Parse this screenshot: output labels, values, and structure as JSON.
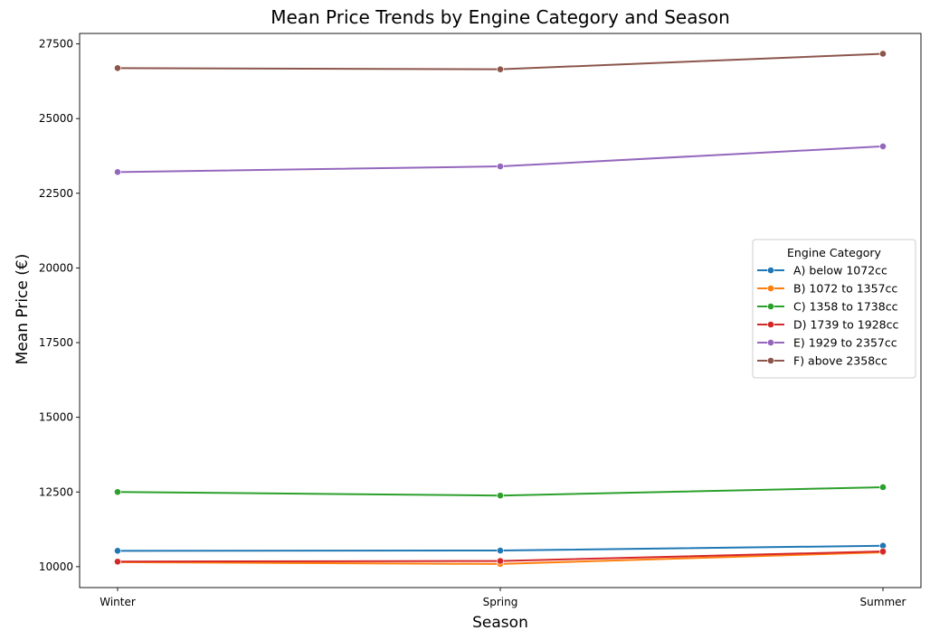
{
  "chart_data": {
    "type": "line",
    "title": "Mean Price Trends by Engine Category and Season",
    "xlabel": "Season",
    "ylabel": "Mean Price (€)",
    "categories": [
      "Winter",
      "Spring",
      "Summer"
    ],
    "ylim": [
      9300,
      27850
    ],
    "yticks": [
      10000,
      12500,
      15000,
      17500,
      20000,
      22500,
      25000,
      27500
    ],
    "grid": false,
    "legend": {
      "title": "Engine Category",
      "placement": "center-right"
    },
    "series": [
      {
        "name": "A) below 1072cc",
        "color": "#1f77b4",
        "values": [
          10530,
          10540,
          10700
        ]
      },
      {
        "name": "B) 1072 to 1357cc",
        "color": "#ff7f0e",
        "values": [
          10150,
          10090,
          10480
        ]
      },
      {
        "name": "C) 1358 to 1738cc",
        "color": "#2ca02c",
        "values": [
          12500,
          12380,
          12660
        ]
      },
      {
        "name": "D) 1739 to 1928cc",
        "color": "#d62728",
        "values": [
          10170,
          10190,
          10510
        ]
      },
      {
        "name": "E) 1929 to 2357cc",
        "color": "#9467bd",
        "values": [
          23210,
          23400,
          24070
        ]
      },
      {
        "name": "F) above 2358cc",
        "color": "#8c564b",
        "values": [
          26690,
          26650,
          27170
        ]
      }
    ]
  }
}
